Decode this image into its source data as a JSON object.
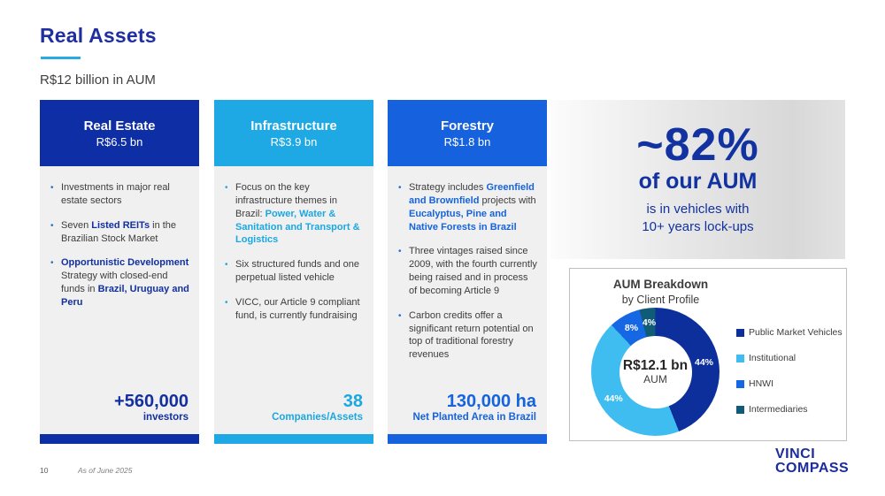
{
  "slide": {
    "title": "Real Assets",
    "subtitle": "R$12 billion in AUM",
    "title_color": "#1f2fa0",
    "underline_color": "#29abe2"
  },
  "columns": [
    {
      "name": "Real Estate",
      "header": {
        "title": "Real Estate",
        "subtitle": "R$6.5 bn"
      },
      "color": "#0d2ea5",
      "accent": "#13309e",
      "bullet_dot_color": "#2e75b6",
      "bullets": [
        [
          {
            "t": "Investments in major real estate sectors"
          }
        ],
        [
          {
            "t": "Seven "
          },
          {
            "t": "Listed REITs",
            "b": true
          },
          {
            "t": " in the Brazilian Stock Market"
          }
        ],
        [
          {
            "t": "Opportunistic Development",
            "b": true
          },
          {
            "t": " Strategy with closed-end funds in "
          },
          {
            "t": "Brazil, Uruguay and Peru",
            "b": true
          }
        ]
      ],
      "stat": {
        "value": "+560,000",
        "label": "investors"
      }
    },
    {
      "name": "Infrastructure",
      "header": {
        "title": "Infrastructure",
        "subtitle": "R$3.9 bn"
      },
      "color": "#1ea9e4",
      "accent": "#1ba7e0",
      "bullet_dot_color": "#1ea9e4",
      "bullets": [
        [
          {
            "t": "Focus on the key infrastructure themes in Brazil: "
          },
          {
            "t": "Power, Water & Sanitation and Transport & Logistics",
            "b": true
          }
        ],
        [
          {
            "t": "Six structured funds and one perpetual listed vehicle"
          }
        ],
        [
          {
            "t": "VICC, our Article 9 compliant fund, is currently fundraising"
          }
        ]
      ],
      "stat": {
        "value": "38",
        "label": "Companies/Assets"
      }
    },
    {
      "name": "Forestry",
      "header": {
        "title": "Forestry",
        "subtitle": "R$1.8 bn"
      },
      "color": "#1561de",
      "accent": "#1563dd",
      "bullet_dot_color": "#1e6fe0",
      "bullets": [
        [
          {
            "t": "Strategy includes "
          },
          {
            "t": "Greenfield and Brownfield",
            "b": true
          },
          {
            "t": " projects with "
          },
          {
            "t": "Eucalyptus, Pine and Native Forests in Brazil",
            "b": true
          }
        ],
        [
          {
            "t": "Three vintages raised since 2009, with the fourth currently being raised and in process of becoming Article 9"
          }
        ],
        [
          {
            "t": "Carbon credits offer a significant return potential on top of traditional forestry revenues"
          }
        ]
      ],
      "stat": {
        "value": "130,000 ha",
        "label": "Net Planted Area in Brazil"
      }
    }
  ],
  "highlight": {
    "value": "~82%",
    "line2": "of our AUM",
    "line3": "is in vehicles with",
    "line4": "10+ years lock-ups",
    "text_color": "#1132a0"
  },
  "chart_data": {
    "type": "pie",
    "donut": true,
    "title": "AUM Breakdown",
    "subtitle": "by Client Profile",
    "center_value": "R$12.1 bn",
    "center_label": "AUM",
    "start_angle_deg": 0,
    "direction": "clockwise",
    "legend_position": "right",
    "value_label_format": "percent",
    "slices": [
      {
        "label": "Public Market Vehicles",
        "value": 44,
        "color": "#0c2f9c"
      },
      {
        "label": "Institutional",
        "value": 44,
        "color": "#3fbdf0"
      },
      {
        "label": "HNWI",
        "value": 8,
        "color": "#1667e3"
      },
      {
        "label": "Intermediaries",
        "value": 4,
        "color": "#0f5b78"
      }
    ]
  },
  "footer": {
    "page_number": "10",
    "note": "As of June 2025"
  },
  "logo": {
    "line1": "VINCI",
    "line2": "COMPASS",
    "color": "#1b2c9e"
  }
}
